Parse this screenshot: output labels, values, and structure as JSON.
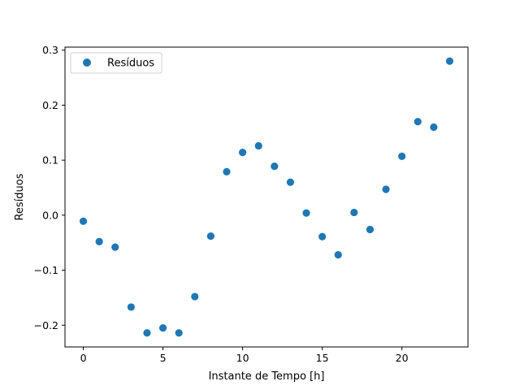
{
  "chart_data": {
    "type": "scatter",
    "title": "",
    "xlabel": "Instante de Tempo [h]",
    "ylabel": "Resíduos",
    "xlim": [
      -1.15,
      24.15
    ],
    "ylim": [
      -0.2395,
      0.3055
    ],
    "xticks": [
      0,
      5,
      10,
      15,
      20
    ],
    "xtick_labels": [
      "0",
      "5",
      "10",
      "15",
      "20"
    ],
    "yticks": [
      -0.2,
      -0.1,
      0.0,
      0.1,
      0.2,
      0.3
    ],
    "ytick_labels": [
      "−0.2",
      "−0.1",
      "0.0",
      "0.1",
      "0.2",
      "0.3"
    ],
    "grid": false,
    "legend_position": "top-left",
    "series": [
      {
        "name": "Resíduos",
        "color": "#1f77b4",
        "marker": "circle",
        "x": [
          0,
          1,
          2,
          3,
          4,
          5,
          6,
          7,
          8,
          9,
          10,
          11,
          12,
          13,
          14,
          15,
          16,
          17,
          18,
          19,
          20,
          21,
          22,
          23
        ],
        "y": [
          -0.011,
          -0.048,
          -0.058,
          -0.167,
          -0.214,
          -0.205,
          -0.214,
          -0.148,
          -0.038,
          0.079,
          0.114,
          0.126,
          0.089,
          0.06,
          0.004,
          -0.039,
          -0.072,
          0.005,
          -0.026,
          0.047,
          0.107,
          0.17,
          0.16,
          0.28
        ]
      }
    ]
  }
}
